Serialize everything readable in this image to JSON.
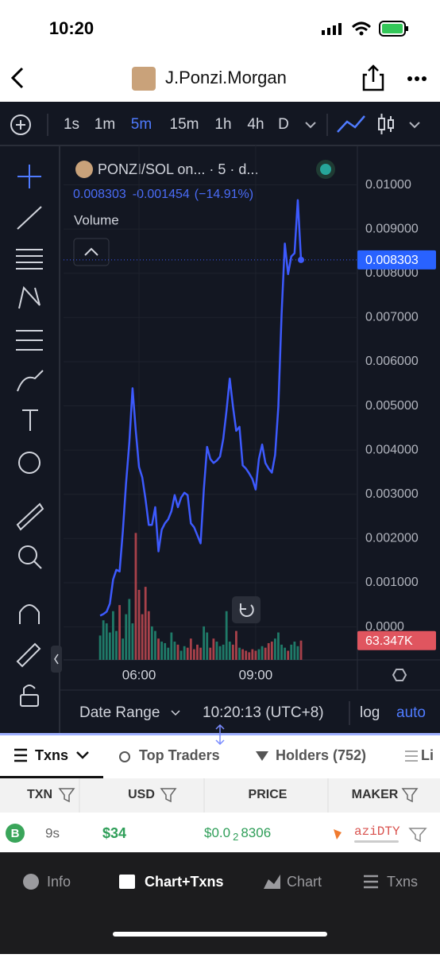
{
  "status_bar": {
    "time": "10:20"
  },
  "header": {
    "title": "J.Ponzi.Morgan"
  },
  "toolbar": {
    "timeframes": [
      "1s",
      "1m",
      "5m",
      "15m",
      "1h",
      "4h",
      "D"
    ],
    "active": 2
  },
  "chart": {
    "type": "line",
    "title": "PONZI/SOL on... · 5 · d...",
    "legend": [
      "0.008303",
      "-0.001454",
      "(−14.91%)"
    ],
    "volume_label": "Volume",
    "x": [
      0,
      1,
      2,
      3,
      4,
      5,
      6,
      7,
      8,
      9,
      10,
      11,
      12,
      13,
      14,
      15,
      16,
      17,
      18,
      19,
      20,
      21,
      22,
      23,
      24,
      25,
      26,
      27,
      28,
      29,
      30,
      31,
      32,
      33,
      34,
      35,
      36,
      37,
      38,
      39,
      40,
      41,
      42,
      43,
      44,
      45,
      46,
      47,
      48,
      49,
      50,
      51,
      52,
      53,
      54,
      55,
      56,
      57,
      58,
      59,
      60,
      61,
      62
    ],
    "values": [
      0.000255,
      0.000291,
      0.000345,
      0.000527,
      0.001073,
      0.001291,
      0.001255,
      0.002164,
      0.003255,
      0.004164,
      0.0054,
      0.004436,
      0.003618,
      0.003382,
      0.002891,
      0.002309,
      0.002309,
      0.002709,
      0.001709,
      0.0022,
      0.002345,
      0.002436,
      0.002618,
      0.002982,
      0.002709,
      0.002927,
      0.003036,
      0.002982,
      0.002345,
      0.002255,
      0.002073,
      0.001891,
      0.003109,
      0.004073,
      0.0038,
      0.003709,
      0.003764,
      0.003855,
      0.004255,
      0.004891,
      0.005618,
      0.004982,
      0.004436,
      0.004527,
      0.003655,
      0.003582,
      0.003473,
      0.003345,
      0.003109,
      0.0038,
      0.004127,
      0.003709,
      0.003582,
      0.003491,
      0.003891,
      0.004982,
      0.007073,
      0.008673,
      0.007982,
      0.008382,
      0.008455,
      0.009655,
      0.008303
    ],
    "volumes": [
      80000,
      130000,
      120000,
      90000,
      160000,
      95000,
      180000,
      70000,
      150000,
      200000,
      120000,
      417000,
      230000,
      150000,
      240000,
      160000,
      110000,
      95000,
      70000,
      60000,
      55000,
      40000,
      90000,
      60000,
      50000,
      30000,
      45000,
      40000,
      70000,
      35000,
      50000,
      40000,
      110000,
      90000,
      40000,
      70000,
      60000,
      45000,
      50000,
      160000,
      60000,
      50000,
      95000,
      40000,
      35000,
      30000,
      25000,
      35000,
      30000,
      35000,
      45000,
      40000,
      55000,
      60000,
      70000,
      90000,
      50000,
      40000,
      30000,
      50000,
      60000,
      45000,
      63347
    ],
    "color": "#3d5afe",
    "xlim": [
      -11.3,
      79.4
    ],
    "xticks": [
      {
        "value": 12,
        "label": "06:00"
      },
      {
        "value": 48,
        "label": "09:00"
      }
    ],
    "ylim": [
      -0.000745,
      0.010891
    ],
    "yticks": [
      {
        "value": 0.01,
        "label": "0.01000"
      },
      {
        "value": 0.009,
        "label": "0.009000"
      },
      {
        "value": 0.008,
        "label": "0.008000"
      },
      {
        "value": 0.007,
        "label": "0.007000"
      },
      {
        "value": 0.006,
        "label": "0.006000"
      },
      {
        "value": 0.005,
        "label": "0.005000"
      },
      {
        "value": 0.004,
        "label": "0.004000"
      },
      {
        "value": 0.003,
        "label": "0.003000"
      },
      {
        "value": 0.002,
        "label": "0.002000"
      },
      {
        "value": 0.001,
        "label": "0.001000"
      },
      {
        "value": 0,
        "label": "0.0000"
      }
    ],
    "volume_lim": [
      0,
      1690000
    ],
    "last_price": {
      "value": 0.008303,
      "label": "0.008303"
    },
    "last_volume": {
      "value": 63347,
      "label": "63.347K"
    },
    "grid": true
  },
  "chart_footer": {
    "date_range": "Date Range",
    "time": "10:20:13 (UTC+8)",
    "log": "log",
    "auto": "auto"
  },
  "tabs": [
    "Txns",
    "Top Traders",
    "Holders (752)",
    "Li"
  ],
  "table": {
    "columns": [
      "TXN",
      "USD",
      "PRICE",
      "MAKER"
    ],
    "rows": [
      {
        "side": "B",
        "age": "9s",
        "usd": "$34",
        "price_prefix": "$0.0",
        "price_sub": "2",
        "price_rest": "8306",
        "maker": "aziDTY"
      }
    ]
  },
  "bottom_nav": [
    "Info",
    "Chart+Txns",
    "Chart",
    "Txns"
  ]
}
